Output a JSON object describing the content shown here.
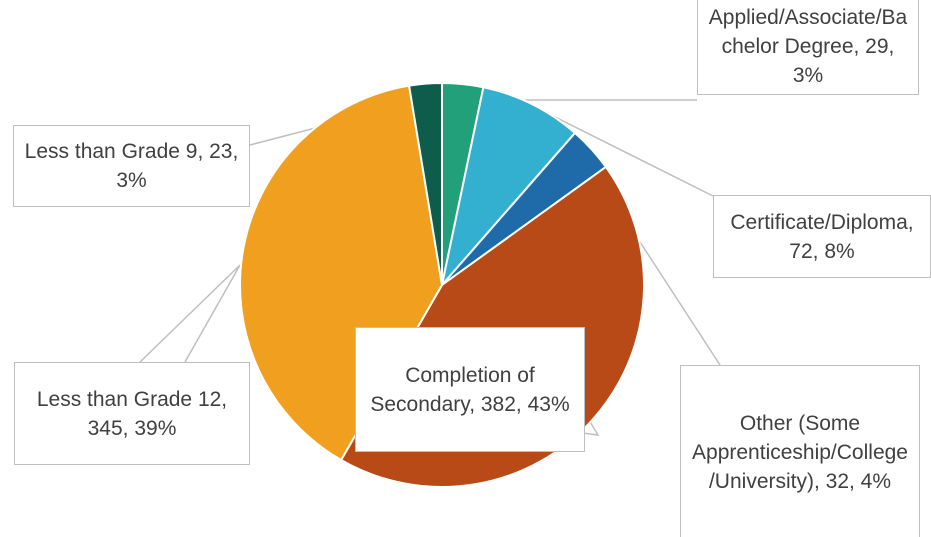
{
  "chart_data": {
    "type": "pie",
    "categories": [
      "Applied/Associate/Bachelor Degree",
      "Certificate/Diploma",
      "Other (Some Apprenticeship/College/University)",
      "Completion of Secondary",
      "Less than Grade 12",
      "Less than Grade 9"
    ],
    "values": [
      29,
      72,
      32,
      382,
      345,
      23
    ],
    "value_labels": [
      "Applied/Associate/Bachelor Degree, 29, 3%",
      "Certificate/Diploma, 72, 8%",
      "Other (Some Apprenticeship/College/University), 32, 4%",
      "Completion of Secondary, 382, 43%",
      "Less than Grade 12, 345, 39%",
      "Less than Grade 9, 23, 3%"
    ],
    "colors": [
      "#21a07a",
      "#33b0d0",
      "#1f6aa8",
      "#b84a17",
      "#f0a01e",
      "#0e5c4c"
    ]
  }
}
